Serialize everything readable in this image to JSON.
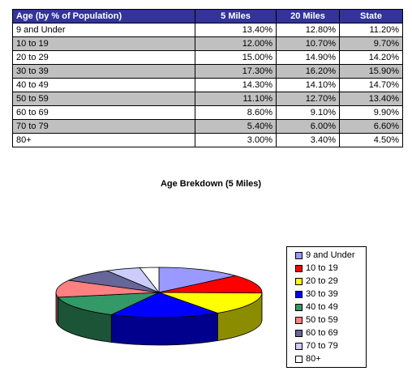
{
  "table": {
    "headers": [
      "Age (by % of Population)",
      "5 Miles",
      "20 Miles",
      "State"
    ],
    "rows": [
      [
        "9 and Under",
        "13.40%",
        "12.80%",
        "11.20%"
      ],
      [
        "10 to 19",
        "12.00%",
        "10.70%",
        "9.70%"
      ],
      [
        "20 to 29",
        "15.00%",
        "14.90%",
        "14.20%"
      ],
      [
        "30 to 39",
        "17.30%",
        "16.20%",
        "15.90%"
      ],
      [
        "40 to 49",
        "14.30%",
        "14.10%",
        "14.70%"
      ],
      [
        "50 to 59",
        "11.10%",
        "12.70%",
        "13.40%"
      ],
      [
        "60 to 69",
        "8.60%",
        "9.10%",
        "9.90%"
      ],
      [
        "70 to 79",
        "5.40%",
        "6.00%",
        "6.60%"
      ],
      [
        "80+",
        "3.00%",
        "3.40%",
        "4.50%"
      ]
    ]
  },
  "chart_data": {
    "type": "pie",
    "title": "Age Brekdown (5 Miles)",
    "categories": [
      "9 and Under",
      "10 to 19",
      "20 to 29",
      "30 to 39",
      "40 to 49",
      "50 to 59",
      "60 to 69",
      "70 to 79",
      "80+"
    ],
    "values": [
      13.4,
      12.0,
      15.0,
      17.3,
      14.3,
      11.1,
      8.6,
      5.4,
      3.0
    ],
    "colors": [
      "#9999ff",
      "#ff0000",
      "#ffff00",
      "#0000ff",
      "#339966",
      "#ff8080",
      "#666699",
      "#ccccff",
      "#ffffff"
    ],
    "style": "3d-tilted",
    "legend_position": "right"
  }
}
